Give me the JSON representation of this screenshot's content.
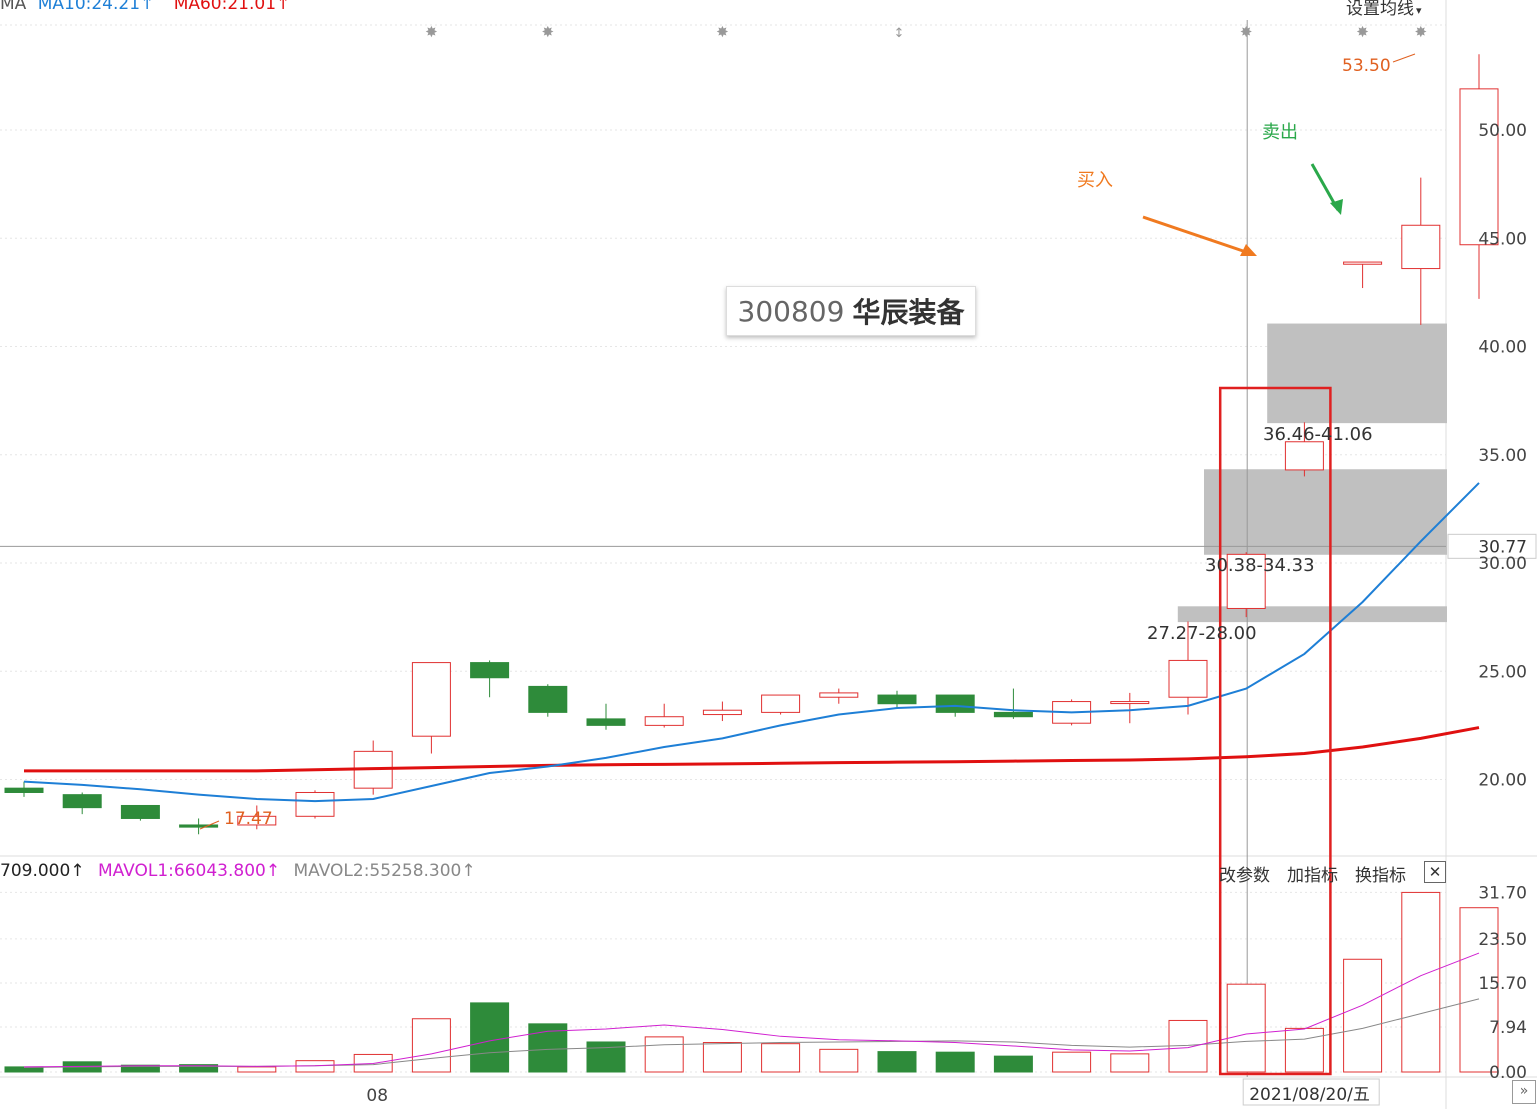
{
  "top_legend": {
    "ma_prefix": "MA",
    "ma10": "MA10:24.21",
    "ma60": "MA60:21.01",
    "arrow": "↑",
    "settings_label": "设置均线",
    "settings_caret": "▾"
  },
  "stock": {
    "code": "300809",
    "name": "华辰装备"
  },
  "annotations": {
    "buy_label": "买入",
    "sell_label": "卖出",
    "high_label": "53.50",
    "low_label": "17.47",
    "zone1_label": "36.46-41.06",
    "zone2_label": "30.38-34.33",
    "zone3_label": "27.27-28.00",
    "crosshair_price": "30.77"
  },
  "volume_legend": {
    "vol": "709.000",
    "mavol1": "MAVOL1:66043.800",
    "mavol2": "MAVOL2:55258.300",
    "arrow": "↑"
  },
  "volume_toolbar": {
    "change_params": "改参数",
    "add_indicator": "加指标",
    "switch_indicator": "换指标",
    "close": "✕"
  },
  "x_axis": {
    "month_label": "08",
    "crosshair_date": "2021/08/20/五"
  },
  "nav": {
    "scroll_right": "»"
  },
  "colors": {
    "up": "#e03030",
    "down": "#2e8b3a",
    "ma10": "#1e7fd6",
    "ma60": "#e01010",
    "mavol1": "#d020d0",
    "mavol2": "#888888",
    "zone": "#c0c0c0",
    "buy": "#f07a20",
    "sell": "#2aa84a",
    "annotation_text": "#e06020",
    "highlight_box": "#e02020"
  },
  "chart_data": {
    "type": "candlestick",
    "price_axis_ticks": [
      "50.00",
      "45.00",
      "40.00",
      "35.00",
      "30.00",
      "25.00",
      "20.00"
    ],
    "volume_axis_ticks": [
      "31.70",
      "23.50",
      "15.70",
      "7.94",
      "0.00"
    ],
    "price_ylim": [
      15.5,
      56
    ],
    "volume_ylim": [
      0,
      33.2
    ],
    "candles": [
      {
        "o": 19.6,
        "h": 19.9,
        "l": 19.2,
        "c": 19.4,
        "vol": 0.9
      },
      {
        "o": 19.3,
        "h": 19.4,
        "l": 18.4,
        "c": 18.7,
        "vol": 1.8
      },
      {
        "o": 18.8,
        "h": 18.8,
        "l": 18.1,
        "c": 18.2,
        "vol": 1.2
      },
      {
        "o": 17.9,
        "h": 18.2,
        "l": 17.47,
        "c": 17.8,
        "vol": 1.3
      },
      {
        "o": 17.9,
        "h": 18.8,
        "l": 17.7,
        "c": 18.3,
        "vol": 0.9
      },
      {
        "o": 18.3,
        "h": 19.5,
        "l": 18.2,
        "c": 19.4,
        "vol": 2.0
      },
      {
        "o": 19.6,
        "h": 21.8,
        "l": 19.3,
        "c": 21.3,
        "vol": 3.1
      },
      {
        "o": 22.0,
        "h": 25.4,
        "l": 21.2,
        "c": 25.4,
        "vol": 9.4
      },
      {
        "o": 25.4,
        "h": 25.5,
        "l": 23.8,
        "c": 24.7,
        "vol": 12.2
      },
      {
        "o": 24.3,
        "h": 24.4,
        "l": 22.9,
        "c": 23.1,
        "vol": 8.5
      },
      {
        "o": 22.8,
        "h": 23.5,
        "l": 22.3,
        "c": 22.5,
        "vol": 5.3
      },
      {
        "o": 22.5,
        "h": 23.5,
        "l": 22.4,
        "c": 22.9,
        "vol": 6.2
      },
      {
        "o": 23.0,
        "h": 23.6,
        "l": 22.7,
        "c": 23.2,
        "vol": 5.2
      },
      {
        "o": 23.1,
        "h": 23.9,
        "l": 23.0,
        "c": 23.9,
        "vol": 5.0
      },
      {
        "o": 23.8,
        "h": 24.2,
        "l": 23.5,
        "c": 24.0,
        "vol": 4.0
      },
      {
        "o": 23.9,
        "h": 24.1,
        "l": 23.3,
        "c": 23.5,
        "vol": 3.6
      },
      {
        "o": 23.9,
        "h": 23.9,
        "l": 22.9,
        "c": 23.1,
        "vol": 3.5
      },
      {
        "o": 23.1,
        "h": 24.2,
        "l": 22.8,
        "c": 22.9,
        "vol": 2.8
      },
      {
        "o": 22.6,
        "h": 23.7,
        "l": 22.5,
        "c": 23.6,
        "vol": 3.5
      },
      {
        "o": 23.6,
        "h": 24.0,
        "l": 22.6,
        "c": 23.6,
        "vol": 3.2
      },
      {
        "o": 23.8,
        "h": 27.3,
        "l": 23.0,
        "c": 25.5,
        "vol": 9.1
      },
      {
        "o": 27.9,
        "h": 30.5,
        "l": 27.5,
        "c": 30.4,
        "vol": 15.5
      },
      {
        "o": 34.3,
        "h": 36.5,
        "l": 34.0,
        "c": 35.6,
        "vol": 7.7
      },
      {
        "o": 43.8,
        "h": 43.9,
        "l": 42.7,
        "c": 43.9,
        "vol": 19.9
      },
      {
        "o": 43.6,
        "h": 47.8,
        "l": 41.0,
        "c": 45.6,
        "vol": 31.7
      },
      {
        "o": 44.7,
        "h": 53.5,
        "l": 42.2,
        "c": 51.9,
        "vol": 29.0
      }
    ],
    "ma10": [
      19.9,
      19.75,
      19.55,
      19.3,
      19.1,
      19.0,
      19.1,
      19.7,
      20.3,
      20.6,
      21.0,
      21.5,
      21.9,
      22.5,
      23.0,
      23.3,
      23.4,
      23.2,
      23.1,
      23.2,
      23.4,
      24.2,
      25.8,
      28.2,
      31.0,
      33.7
    ],
    "ma60": [
      20.4,
      20.4,
      20.4,
      20.4,
      20.4,
      20.45,
      20.5,
      20.55,
      20.6,
      20.65,
      20.68,
      20.7,
      20.72,
      20.75,
      20.78,
      20.8,
      20.82,
      20.85,
      20.88,
      20.9,
      20.95,
      21.05,
      21.2,
      21.5,
      21.9,
      22.4
    ],
    "mavol1": [
      0.9,
      1.0,
      1.1,
      1.1,
      1.0,
      1.1,
      1.5,
      3.2,
      5.5,
      7.2,
      7.6,
      8.3,
      7.5,
      6.3,
      5.7,
      5.5,
      5.2,
      4.6,
      3.9,
      3.7,
      4.3,
      6.7,
      7.6,
      11.8,
      17.0,
      21.0
    ],
    "mavol2": [
      0.8,
      0.9,
      1.0,
      1.0,
      1.0,
      1.1,
      1.3,
      2.4,
      3.4,
      4.0,
      4.3,
      4.8,
      5.0,
      5.2,
      5.3,
      5.4,
      5.5,
      5.3,
      4.7,
      4.4,
      4.7,
      5.4,
      5.8,
      7.7,
      10.3,
      12.9
    ],
    "zones": [
      {
        "low": 36.46,
        "high": 41.06
      },
      {
        "low": 30.38,
        "high": 34.33
      },
      {
        "low": 27.27,
        "high": 28.0
      }
    ],
    "crosshair_price": 30.77,
    "crosshair_index": 21,
    "highlight_range": [
      21,
      22
    ],
    "month_tick_index": 6
  }
}
